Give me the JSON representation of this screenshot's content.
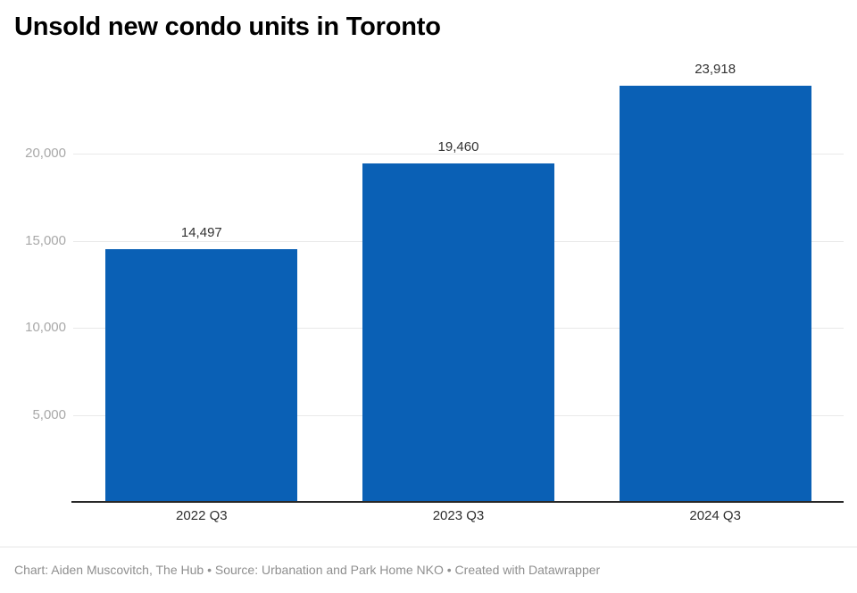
{
  "header": {
    "title": "Unsold new condo units in Toronto"
  },
  "chart_data": {
    "type": "bar",
    "title": "Unsold new condo units in Toronto",
    "categories": [
      "2022 Q3",
      "2023 Q3",
      "2024 Q3"
    ],
    "values": [
      14497,
      19460,
      23918
    ],
    "value_labels": [
      "14,497",
      "19,460",
      "23,918"
    ],
    "xlabel": "",
    "ylabel": "",
    "ylim": [
      0,
      24600
    ],
    "yticks": [
      {
        "value": 5000,
        "label": "5,000"
      },
      {
        "value": 10000,
        "label": "10,000"
      },
      {
        "value": 15000,
        "label": "15,000"
      },
      {
        "value": 20000,
        "label": "20,000"
      }
    ],
    "grid": "horizontal",
    "legend": "none",
    "bar_color": "#0a60b5"
  },
  "colors": {
    "bar": "#0a60b5",
    "gridline": "#e9e9e9",
    "axis_line": "#282828",
    "ytick_text": "#a8a8a8",
    "label_text": "#333333",
    "footer_text": "#8f8f8f",
    "background": "#ffffff"
  },
  "footer": {
    "text": "Chart: Aiden Muscovitch, The Hub • Source: Urbanation and Park Home NKO • Created with Datawrapper"
  }
}
